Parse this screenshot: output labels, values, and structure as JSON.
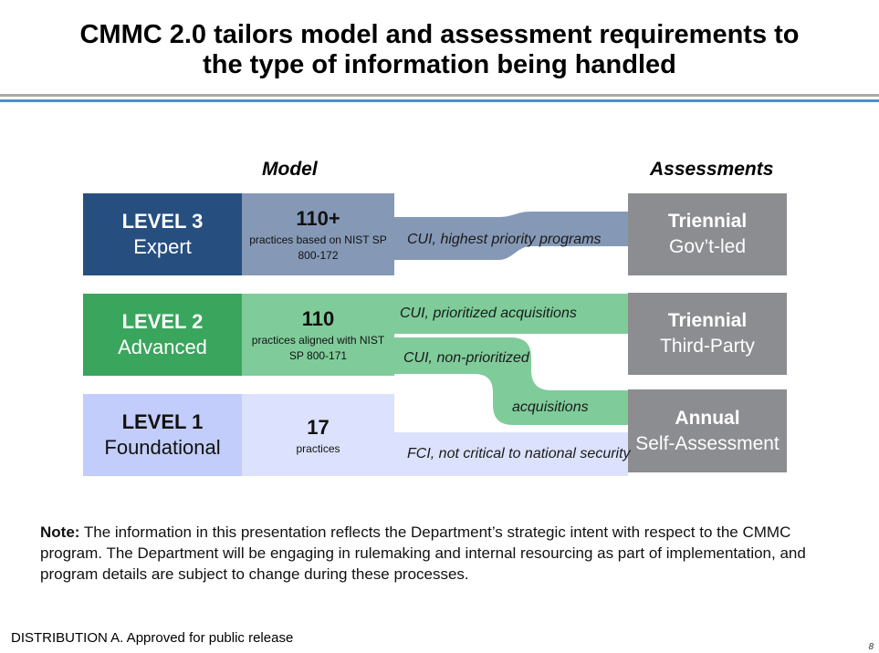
{
  "title_line1": "CMMC 2.0 tailors model and assessment requirements to",
  "title_line2": "the type of information being handled",
  "model_header": "Model",
  "assessments_header": "Assessments",
  "levels": [
    {
      "name": "LEVEL 3",
      "sub": "Expert",
      "practices_num": "110+",
      "practices_desc": "practices based on NIST SP 800-172",
      "color": "#264f80",
      "practice_color": "#8599b6"
    },
    {
      "name": "LEVEL 2",
      "sub": "Advanced",
      "practices_num": "110",
      "practices_desc": "practices aligned with NIST SP 800-171",
      "color": "#3aa55d",
      "practice_color": "#7fcc9a"
    },
    {
      "name": "LEVEL 1",
      "sub": "Foundational",
      "practices_num": "17",
      "practices_desc": "practices",
      "color": "#c3cdfb",
      "practice_color": "#dce2fd"
    }
  ],
  "assessments": [
    {
      "name": "Triennial",
      "sub": "Gov’t-led"
    },
    {
      "name": "Triennial",
      "sub": "Third-Party"
    },
    {
      "name": "Annual",
      "sub": "Self-Assessment"
    }
  ],
  "assessment_color": "#8c8d91",
  "flows": {
    "cui_highest": "CUI, highest priority programs",
    "cui_prioritized": "CUI, prioritized acquisitions",
    "cui_non_prioritized": "CUI, non-prioritized",
    "acquisitions": "acquisitions",
    "fci": "FCI, not critical to national security"
  },
  "note": {
    "label": "Note:",
    "text": " The information in this presentation reflects the Department’s strategic intent with respect to the CMMC program. The Department will be engaging in rulemaking and internal resourcing as part of implementation, and program details are subject to change during these processes."
  },
  "distribution": "DISTRIBUTION A.  Approved for public release",
  "page_number": "8"
}
